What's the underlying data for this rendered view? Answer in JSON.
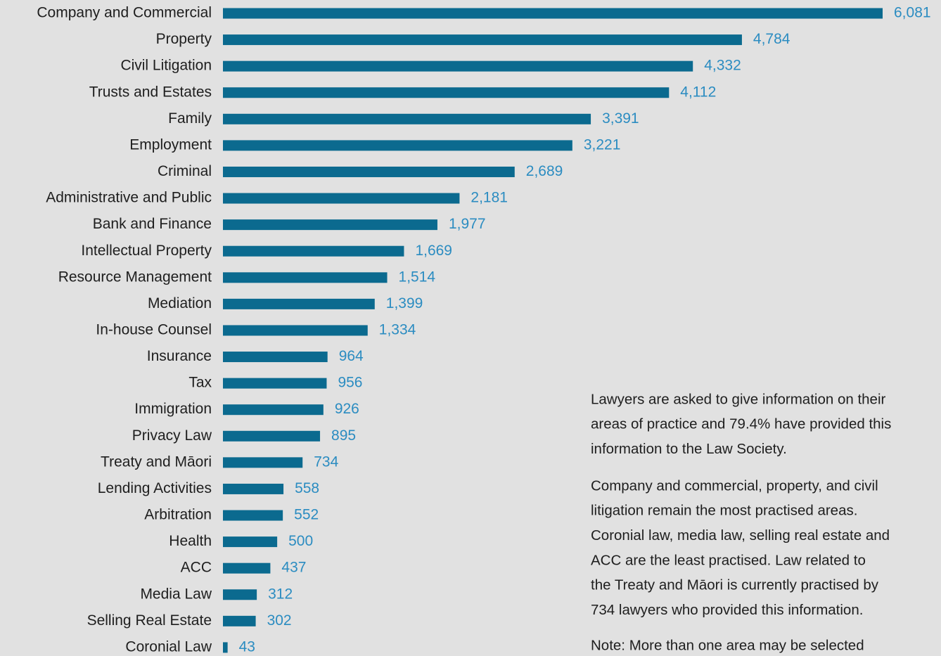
{
  "chart_data": {
    "type": "bar",
    "orientation": "horizontal",
    "color": "#0b6a8f",
    "categories": [
      "Company and Commercial",
      "Property",
      "Civil Litigation",
      "Trusts and Estates",
      "Family",
      "Employment",
      "Criminal",
      "Administrative and Public",
      "Bank and Finance",
      "Intellectual Property",
      "Resource Management",
      "Mediation",
      "In-house Counsel",
      "Insurance",
      "Tax",
      "Immigration",
      "Privacy Law",
      "Treaty and Māori",
      "Lending Activities",
      "Arbitration",
      "Health",
      "ACC",
      "Media Law",
      "Selling Real Estate",
      "Coronial Law"
    ],
    "values": [
      6081,
      4784,
      4332,
      4112,
      3391,
      3221,
      2689,
      2181,
      1977,
      1669,
      1514,
      1399,
      1334,
      964,
      956,
      926,
      895,
      734,
      558,
      552,
      500,
      437,
      312,
      302,
      43
    ],
    "value_labels": [
      "6,081",
      "4,784",
      "4,332",
      "4,112",
      "3,391",
      "3,221",
      "2,689",
      "2,181",
      "1,977",
      "1,669",
      "1,514",
      "1,399",
      "1,334",
      "964",
      "956",
      "926",
      "895",
      "734",
      "558",
      "552",
      "500",
      "437",
      "312",
      "302",
      "43"
    ],
    "annotations": [
      [
        "Lawyers are asked to give information on their",
        "areas of practice and 79.4% have provided this",
        "information to the Law Society."
      ],
      [
        "Company and commercial, property, and civil",
        "litigation remain the most practised areas.",
        "Coronial law, media law, selling real estate and",
        "ACC are the least practised. Law related to",
        "the Treaty and Māori is currently practised by",
        "734 lawyers who provided this information."
      ],
      [
        "Note: More than one area may be selected"
      ]
    ]
  }
}
